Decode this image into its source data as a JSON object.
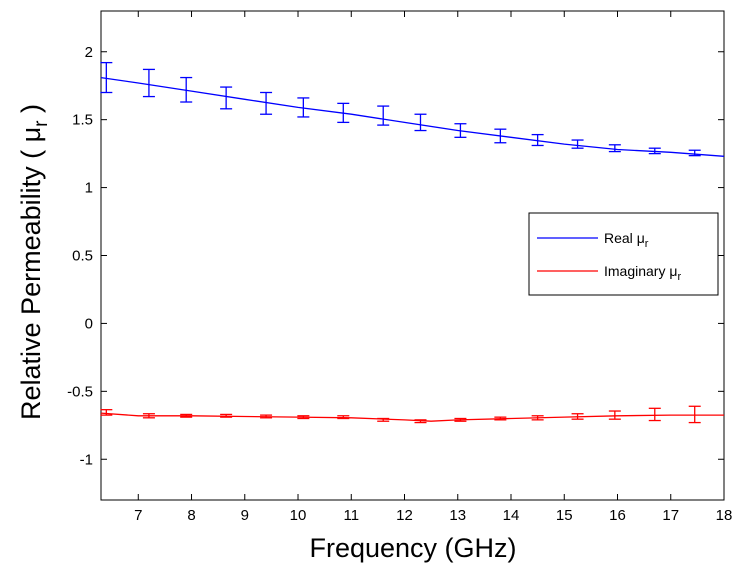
{
  "chart_data": {
    "type": "line",
    "xlabel": "Frequency (GHz)",
    "ylabel": {
      "main": "Relative Permeability ( ",
      "symbol": "μ",
      "subscript": "r",
      "close": " )"
    },
    "xlim": [
      6.3,
      18
    ],
    "ylim": [
      -1.3,
      2.3
    ],
    "xticks": [
      7,
      8,
      9,
      10,
      11,
      12,
      13,
      14,
      15,
      16,
      17,
      18
    ],
    "yticks": [
      -1,
      -0.5,
      0,
      0.5,
      1,
      1.5,
      2
    ],
    "grid": false,
    "legend_position": "right",
    "series": [
      {
        "name": "Real μr",
        "legend": {
          "prefix": "Real ",
          "symbol": "μ",
          "subscript": "r"
        },
        "color": "#0000ff",
        "x": [
          6.3,
          7.0,
          8.0,
          9.0,
          10.0,
          11.0,
          12.0,
          13.0,
          14.0,
          15.0,
          16.0,
          17.0,
          18.0
        ],
        "y": [
          1.81,
          1.77,
          1.71,
          1.65,
          1.59,
          1.54,
          1.48,
          1.42,
          1.37,
          1.32,
          1.28,
          1.26,
          1.23
        ],
        "errorbars": [
          {
            "x": 6.4,
            "y": 1.81,
            "err": 0.11
          },
          {
            "x": 7.2,
            "y": 1.77,
            "err": 0.1
          },
          {
            "x": 7.9,
            "y": 1.72,
            "err": 0.09
          },
          {
            "x": 8.65,
            "y": 1.66,
            "err": 0.08
          },
          {
            "x": 9.4,
            "y": 1.62,
            "err": 0.08
          },
          {
            "x": 10.1,
            "y": 1.59,
            "err": 0.07
          },
          {
            "x": 10.85,
            "y": 1.55,
            "err": 0.07
          },
          {
            "x": 11.6,
            "y": 1.53,
            "err": 0.07
          },
          {
            "x": 12.3,
            "y": 1.48,
            "err": 0.06
          },
          {
            "x": 13.05,
            "y": 1.42,
            "err": 0.05
          },
          {
            "x": 13.8,
            "y": 1.38,
            "err": 0.05
          },
          {
            "x": 14.5,
            "y": 1.35,
            "err": 0.04
          },
          {
            "x": 15.25,
            "y": 1.32,
            "err": 0.03
          },
          {
            "x": 15.95,
            "y": 1.29,
            "err": 0.025
          },
          {
            "x": 16.7,
            "y": 1.27,
            "err": 0.02
          },
          {
            "x": 17.45,
            "y": 1.255,
            "err": 0.02
          }
        ]
      },
      {
        "name": "Imaginary μr",
        "legend": {
          "prefix": "Imaginary ",
          "symbol": "μ",
          "subscript": "r"
        },
        "color": "#ff0000",
        "x": [
          6.3,
          7.0,
          8.0,
          9.0,
          10.0,
          11.0,
          12.0,
          12.5,
          13.0,
          14.0,
          15.0,
          16.0,
          17.0,
          18.0
        ],
        "y": [
          -0.66,
          -0.68,
          -0.68,
          -0.685,
          -0.69,
          -0.695,
          -0.71,
          -0.72,
          -0.71,
          -0.7,
          -0.69,
          -0.68,
          -0.675,
          -0.675
        ],
        "errorbars": [
          {
            "x": 6.4,
            "y": -0.655,
            "err": 0.02
          },
          {
            "x": 7.2,
            "y": -0.68,
            "err": 0.015
          },
          {
            "x": 7.9,
            "y": -0.68,
            "err": 0.01
          },
          {
            "x": 8.65,
            "y": -0.68,
            "err": 0.01
          },
          {
            "x": 9.4,
            "y": -0.685,
            "err": 0.01
          },
          {
            "x": 10.1,
            "y": -0.69,
            "err": 0.01
          },
          {
            "x": 10.85,
            "y": -0.69,
            "err": 0.01
          },
          {
            "x": 11.6,
            "y": -0.71,
            "err": 0.01
          },
          {
            "x": 12.3,
            "y": -0.72,
            "err": 0.01
          },
          {
            "x": 13.05,
            "y": -0.71,
            "err": 0.01
          },
          {
            "x": 13.8,
            "y": -0.7,
            "err": 0.01
          },
          {
            "x": 14.5,
            "y": -0.695,
            "err": 0.015
          },
          {
            "x": 15.25,
            "y": -0.685,
            "err": 0.02
          },
          {
            "x": 15.95,
            "y": -0.675,
            "err": 0.03
          },
          {
            "x": 16.7,
            "y": -0.67,
            "err": 0.045
          },
          {
            "x": 17.45,
            "y": -0.67,
            "err": 0.06
          }
        ]
      }
    ]
  }
}
